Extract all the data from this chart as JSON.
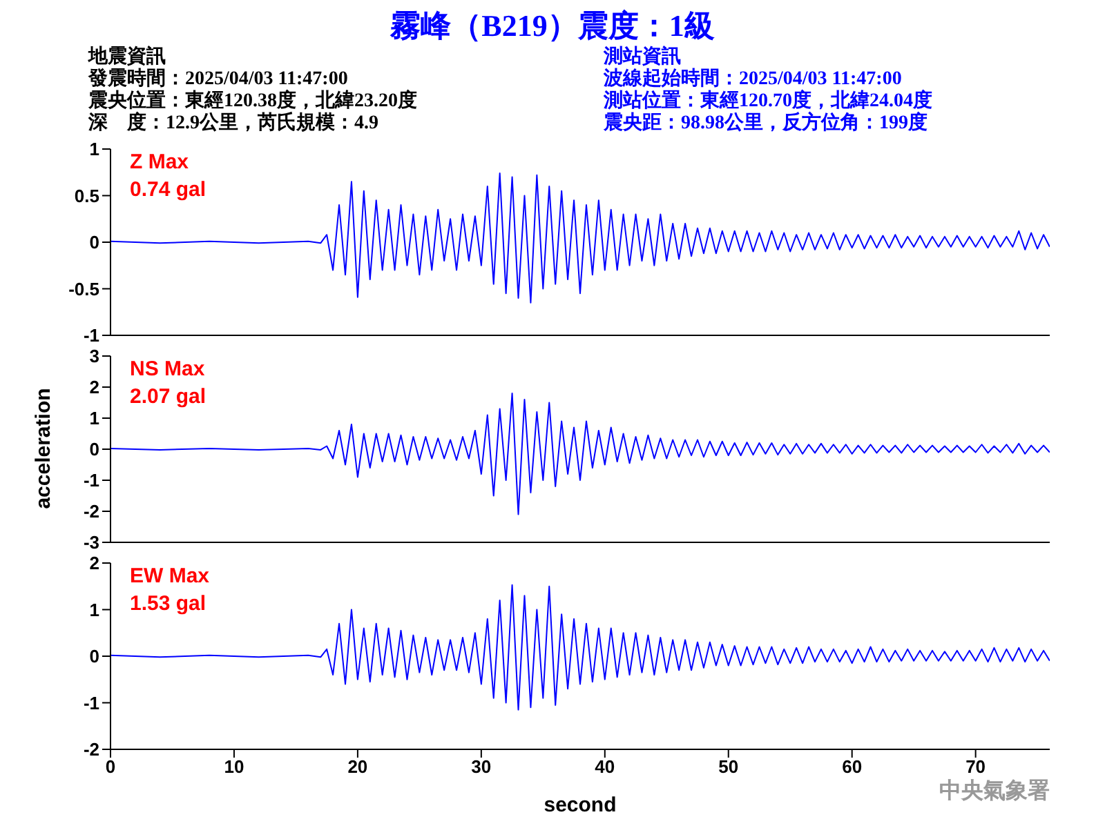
{
  "chart_data": [
    {
      "type": "line",
      "title": "霧峰（B219）震度：1級",
      "annotations": [
        "Z Max",
        "0.74 gal",
        "地震資訊",
        "發震時間：2025/04/03 11:47:00",
        "震央位置：東經120.38度，北緯23.20度",
        "深　度：12.9公里，芮氏規模：4.9",
        "測站資訊",
        "波線起始時間：2025/04/03 11:47:00",
        "測站位置：東經120.70度，北緯24.04度",
        "震央距：98.98公里，反方位角：199度"
      ],
      "xlim": [
        0,
        76
      ],
      "ylim": [
        -1,
        1
      ],
      "yticks": [
        -1,
        -0.5,
        0,
        0.5,
        1
      ],
      "tick_labels": "y",
      "x": [
        0,
        4,
        8,
        12,
        16,
        17,
        17.5,
        18,
        18.5,
        19,
        19.5,
        20,
        20.5,
        21,
        21.5,
        22,
        22.5,
        23,
        23.5,
        24,
        24.5,
        25,
        25.5,
        26,
        26.5,
        27,
        27.5,
        28,
        28.5,
        29,
        29.5,
        30,
        30.5,
        31,
        31.5,
        32,
        32.5,
        33,
        33.5,
        34,
        34.5,
        35,
        35.5,
        36,
        36.5,
        37,
        37.5,
        38,
        38.5,
        39,
        39.5,
        40,
        40.5,
        41,
        41.5,
        42,
        42.5,
        43,
        43.5,
        44,
        44.5,
        45,
        45.5,
        46,
        46.5,
        47,
        47.5,
        48,
        48.5,
        49,
        49.5,
        50,
        50.5,
        51,
        51.5,
        52,
        52.5,
        53,
        53.5,
        54,
        54.5,
        55,
        55.5,
        56,
        56.5,
        57,
        57.5,
        58,
        58.5,
        59,
        59.5,
        60,
        60.5,
        61,
        61.5,
        62,
        62.5,
        63,
        63.5,
        64,
        64.5,
        65,
        65.5,
        66,
        66.5,
        67,
        67.5,
        68,
        68.5,
        69,
        69.5,
        70,
        70.5,
        71,
        71.5,
        72,
        72.5,
        73,
        73.5,
        74,
        74.5,
        75,
        75.5,
        76
      ],
      "series": [
        {
          "color": "#0000ff",
          "values": [
            0.01,
            -0.01,
            0.01,
            -0.01,
            0.01,
            -0.01,
            0.08,
            -0.3,
            0.4,
            -0.35,
            0.65,
            -0.59,
            0.55,
            -0.4,
            0.45,
            -0.3,
            0.35,
            -0.3,
            0.4,
            -0.25,
            0.3,
            -0.35,
            0.28,
            -0.3,
            0.35,
            -0.2,
            0.25,
            -0.3,
            0.3,
            -0.2,
            0.28,
            -0.25,
            0.6,
            -0.45,
            0.74,
            -0.55,
            0.7,
            -0.6,
            0.5,
            -0.65,
            0.72,
            -0.5,
            0.6,
            -0.45,
            0.55,
            -0.4,
            0.45,
            -0.55,
            0.4,
            -0.35,
            0.45,
            -0.3,
            0.35,
            -0.3,
            0.3,
            -0.25,
            0.3,
            -0.2,
            0.25,
            -0.25,
            0.3,
            -0.2,
            0.2,
            -0.18,
            0.2,
            -0.15,
            0.15,
            -0.12,
            0.15,
            -0.12,
            0.12,
            -0.1,
            0.12,
            -0.1,
            0.12,
            -0.1,
            0.1,
            -0.1,
            0.12,
            -0.08,
            0.1,
            -0.1,
            0.08,
            -0.08,
            0.1,
            -0.08,
            0.08,
            -0.07,
            0.1,
            -0.08,
            0.08,
            -0.06,
            0.08,
            -0.07,
            0.07,
            -0.06,
            0.07,
            -0.06,
            0.08,
            -0.06,
            0.06,
            -0.05,
            0.07,
            -0.06,
            0.06,
            -0.05,
            0.06,
            -0.05,
            0.07,
            -0.05,
            0.06,
            -0.05,
            0.06,
            -0.06,
            0.07,
            -0.05,
            0.06,
            -0.05,
            0.12,
            -0.08,
            0.1,
            -0.07,
            0.08,
            -0.05
          ]
        }
      ]
    },
    {
      "type": "line",
      "ylabel": "acceleration",
      "annotations": [
        "NS Max",
        "2.07 gal"
      ],
      "xlim": [
        0,
        76
      ],
      "ylim": [
        -3,
        3
      ],
      "yticks": [
        -3,
        -2,
        -1,
        0,
        1,
        2,
        3
      ],
      "tick_labels": "y",
      "x": [
        0,
        4,
        8,
        12,
        16,
        17,
        17.5,
        18,
        18.5,
        19,
        19.5,
        20,
        20.5,
        21,
        21.5,
        22,
        22.5,
        23,
        23.5,
        24,
        24.5,
        25,
        25.5,
        26,
        26.5,
        27,
        27.5,
        28,
        28.5,
        29,
        29.5,
        30,
        30.5,
        31,
        31.5,
        32,
        32.5,
        33,
        33.5,
        34,
        34.5,
        35,
        35.5,
        36,
        36.5,
        37,
        37.5,
        38,
        38.5,
        39,
        39.5,
        40,
        40.5,
        41,
        41.5,
        42,
        42.5,
        43,
        43.5,
        44,
        44.5,
        45,
        45.5,
        46,
        46.5,
        47,
        47.5,
        48,
        48.5,
        49,
        49.5,
        50,
        50.5,
        51,
        51.5,
        52,
        52.5,
        53,
        53.5,
        54,
        54.5,
        55,
        55.5,
        56,
        56.5,
        57,
        57.5,
        58,
        58.5,
        59,
        59.5,
        60,
        60.5,
        61,
        61.5,
        62,
        62.5,
        63,
        63.5,
        64,
        64.5,
        65,
        65.5,
        66,
        66.5,
        67,
        67.5,
        68,
        68.5,
        69,
        69.5,
        70,
        70.5,
        71,
        71.5,
        72,
        72.5,
        73,
        73.5,
        74,
        74.5,
        75,
        75.5,
        76
      ],
      "series": [
        {
          "color": "#0000ff",
          "values": [
            0.02,
            -0.02,
            0.02,
            -0.02,
            0.02,
            -0.02,
            0.1,
            -0.3,
            0.6,
            -0.5,
            0.8,
            -0.9,
            0.5,
            -0.6,
            0.5,
            -0.4,
            0.5,
            -0.4,
            0.45,
            -0.5,
            0.4,
            -0.35,
            0.4,
            -0.3,
            0.35,
            -0.3,
            0.3,
            -0.35,
            0.4,
            -0.3,
            0.6,
            -0.8,
            1.1,
            -1.5,
            1.3,
            -1.0,
            1.8,
            -2.1,
            1.6,
            -1.4,
            1.2,
            -1.0,
            1.5,
            -1.2,
            0.9,
            -0.8,
            0.7,
            -1.0,
            0.9,
            -0.6,
            0.6,
            -0.5,
            0.7,
            -0.4,
            0.5,
            -0.45,
            0.4,
            -0.35,
            0.45,
            -0.3,
            0.35,
            -0.3,
            0.3,
            -0.25,
            0.3,
            -0.2,
            0.3,
            -0.25,
            0.25,
            -0.2,
            0.25,
            -0.2,
            0.2,
            -0.2,
            0.22,
            -0.18,
            0.2,
            -0.15,
            0.2,
            -0.18,
            0.15,
            -0.15,
            0.18,
            -0.15,
            0.15,
            -0.12,
            0.18,
            -0.12,
            0.15,
            -0.12,
            0.15,
            -0.15,
            0.12,
            -0.12,
            0.15,
            -0.12,
            0.12,
            -0.1,
            0.12,
            -0.12,
            0.15,
            -0.1,
            0.12,
            -0.1,
            0.12,
            -0.1,
            0.1,
            -0.1,
            0.12,
            -0.1,
            0.1,
            -0.1,
            0.15,
            -0.12,
            0.1,
            -0.1,
            0.15,
            -0.12,
            0.18,
            -0.15,
            0.12,
            -0.1,
            0.12,
            -0.1
          ]
        }
      ]
    },
    {
      "type": "line",
      "xlabel": "second",
      "annotations": [
        "EW Max",
        "1.53 gal",
        "中央氣象署"
      ],
      "xlim": [
        0,
        76
      ],
      "xticks": [
        0,
        10,
        20,
        30,
        40,
        50,
        60,
        70
      ],
      "ylim": [
        -2,
        2
      ],
      "yticks": [
        -2,
        -1,
        0,
        1,
        2
      ],
      "x": [
        0,
        4,
        8,
        12,
        16,
        17,
        17.5,
        18,
        18.5,
        19,
        19.5,
        20,
        20.5,
        21,
        21.5,
        22,
        22.5,
        23,
        23.5,
        24,
        24.5,
        25,
        25.5,
        26,
        26.5,
        27,
        27.5,
        28,
        28.5,
        29,
        29.5,
        30,
        30.5,
        31,
        31.5,
        32,
        32.5,
        33,
        33.5,
        34,
        34.5,
        35,
        35.5,
        36,
        36.5,
        37,
        37.5,
        38,
        38.5,
        39,
        39.5,
        40,
        40.5,
        41,
        41.5,
        42,
        42.5,
        43,
        43.5,
        44,
        44.5,
        45,
        45.5,
        46,
        46.5,
        47,
        47.5,
        48,
        48.5,
        49,
        49.5,
        50,
        50.5,
        51,
        51.5,
        52,
        52.5,
        53,
        53.5,
        54,
        54.5,
        55,
        55.5,
        56,
        56.5,
        57,
        57.5,
        58,
        58.5,
        59,
        59.5,
        60,
        60.5,
        61,
        61.5,
        62,
        62.5,
        63,
        63.5,
        64,
        64.5,
        65,
        65.5,
        66,
        66.5,
        67,
        67.5,
        68,
        68.5,
        69,
        69.5,
        70,
        70.5,
        71,
        71.5,
        72,
        72.5,
        73,
        73.5,
        74,
        74.5,
        75,
        75.5,
        76
      ],
      "series": [
        {
          "color": "#0000ff",
          "values": [
            0.02,
            -0.02,
            0.02,
            -0.02,
            0.02,
            -0.02,
            0.15,
            -0.4,
            0.7,
            -0.6,
            1.0,
            -0.5,
            0.6,
            -0.55,
            0.7,
            -0.4,
            0.6,
            -0.45,
            0.55,
            -0.5,
            0.45,
            -0.35,
            0.4,
            -0.4,
            0.35,
            -0.3,
            0.35,
            -0.3,
            0.4,
            -0.35,
            0.5,
            -0.6,
            0.8,
            -0.9,
            1.2,
            -1.0,
            1.53,
            -1.15,
            1.3,
            -1.1,
            1.0,
            -0.9,
            1.5,
            -1.05,
            0.9,
            -0.7,
            0.8,
            -0.6,
            0.7,
            -0.55,
            0.6,
            -0.5,
            0.6,
            -0.45,
            0.5,
            -0.4,
            0.5,
            -0.35,
            0.45,
            -0.4,
            0.4,
            -0.35,
            0.35,
            -0.3,
            0.35,
            -0.3,
            0.3,
            -0.25,
            0.3,
            -0.2,
            0.25,
            -0.2,
            0.22,
            -0.2,
            0.2,
            -0.18,
            0.2,
            -0.15,
            0.2,
            -0.18,
            0.15,
            -0.15,
            0.18,
            -0.15,
            0.2,
            -0.12,
            0.15,
            -0.12,
            0.15,
            -0.12,
            0.12,
            -0.15,
            0.15,
            -0.12,
            0.2,
            -0.12,
            0.15,
            -0.12,
            0.12,
            -0.1,
            0.15,
            -0.1,
            0.12,
            -0.1,
            0.12,
            -0.1,
            0.1,
            -0.1,
            0.12,
            -0.1,
            0.12,
            -0.1,
            0.15,
            -0.12,
            0.18,
            -0.12,
            0.15,
            -0.1,
            0.18,
            -0.12,
            0.15,
            -0.1,
            0.12,
            -0.1
          ]
        }
      ]
    }
  ]
}
